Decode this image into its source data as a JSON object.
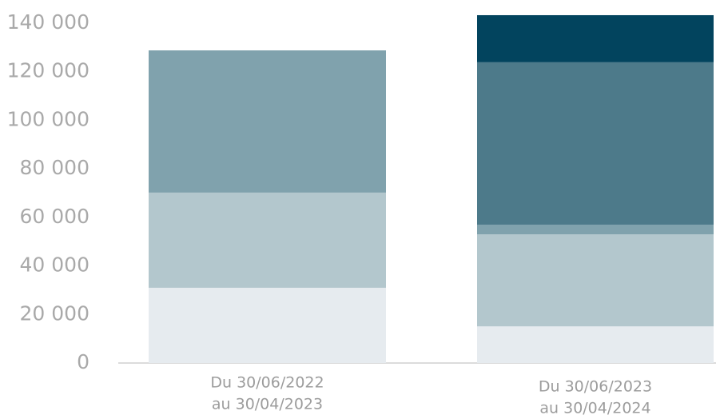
{
  "chart_data": {
    "type": "stacked_bar",
    "categories": [
      [
        "Du 30/06/2022",
        "au 30/04/2023"
      ],
      [
        "Du 30/06/2023",
        "au 30/04/2024"
      ]
    ],
    "series": [
      {
        "color": "#e6ebef",
        "values": [
          31000,
          15100
        ]
      },
      {
        "color": "#b3c7cd",
        "values": [
          39200,
          37900
        ]
      },
      {
        "color": "#80a2ad",
        "values": [
          58600,
          4000
        ]
      },
      {
        "color": "#4d7a8a",
        "values": [
          null,
          66900
        ]
      },
      {
        "color": "#02445e",
        "values": [
          null,
          19400
        ]
      }
    ],
    "ylim": [
      0,
      140000
    ],
    "yticks": [
      0,
      {
        "value": 20000,
        "label": "20 000"
      },
      {
        "value": 40000,
        "label": "40 000"
      },
      {
        "value": 60000,
        "label": "60 000"
      },
      {
        "value": 80000,
        "label": "80 000"
      },
      {
        "value": 100000,
        "label": "100 000"
      },
      {
        "value": 120000,
        "label": "120 000"
      },
      {
        "value": 140000,
        "label": "140 000"
      }
    ]
  }
}
